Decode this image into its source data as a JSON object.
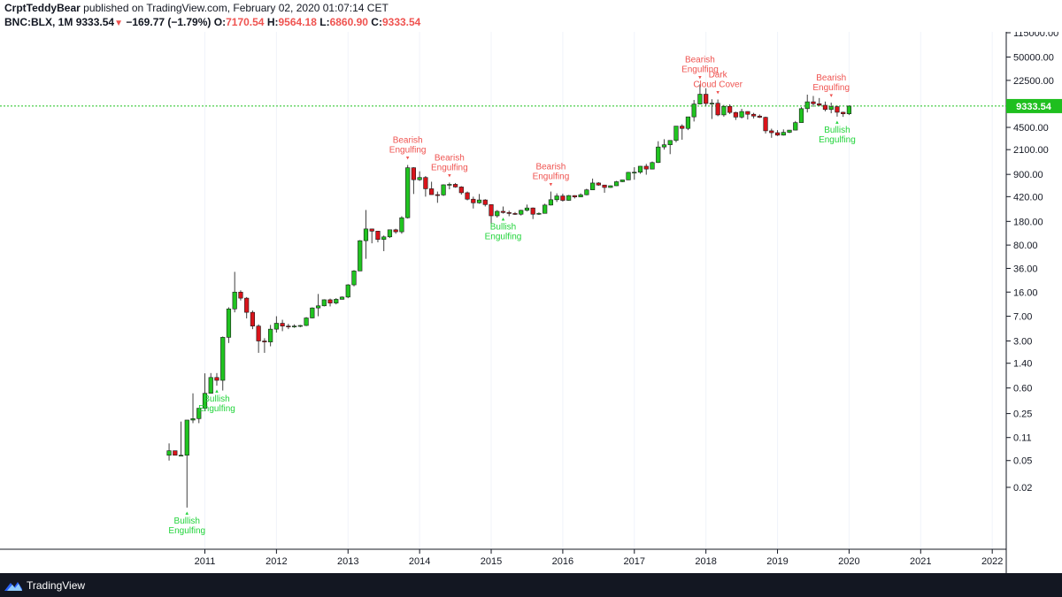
{
  "header": {
    "author": "CrptTeddyBear",
    "published_text": "published on TradingView.com, February 02, 2020 01:07:14 CET",
    "symbol": "BNC:BLX, 1M",
    "last_price": "9333.54",
    "change_arrow": "▼",
    "change": "−169.77 (−1.79%)",
    "open_label": "O:",
    "open_value": "7170.54",
    "high_label": "H:",
    "high_value": "9564.18",
    "low_label": "L:",
    "low_value": "6860.90",
    "close_label": "C:",
    "close_value": "9333.54"
  },
  "footer": {
    "brand": "TradingView"
  },
  "colors": {
    "up": "#20c420",
    "down": "#d9141b",
    "wick": "#404040",
    "bull_text": "#22d43b",
    "bear_text": "#ef5350",
    "price_line": "#1fc21f",
    "price_tag": "#1fbf1f",
    "axis": "#131722",
    "footer_bg": "#131722",
    "brand": "#2962ff"
  },
  "chart_data": {
    "type": "candlestick",
    "y_scale": "log",
    "x_tick_labels": [
      "2011",
      "2012",
      "2013",
      "2014",
      "2015",
      "2016",
      "2017",
      "2018",
      "2019",
      "2020",
      "2021",
      "2022"
    ],
    "y_tick_labels": [
      "115000.00",
      "50000.00",
      "22500.00",
      "9333.54",
      "4500.00",
      "2100.00",
      "900.00",
      "420.00",
      "180.00",
      "80.00",
      "36.00",
      "16.00",
      "7.00",
      "3.00",
      "1.40",
      "0.60",
      "0.25",
      "0.11",
      "0.05",
      "0.02"
    ],
    "last_price": 9333.54,
    "last_price_label": "9333.54",
    "candles": [
      {
        "t": "2010-07",
        "o": 0.06,
        "h": 0.09,
        "l": 0.05,
        "c": 0.07
      },
      {
        "t": "2010-08",
        "o": 0.07,
        "h": 0.07,
        "l": 0.06,
        "c": 0.06
      },
      {
        "t": "2010-09",
        "o": 0.06,
        "h": 0.19,
        "l": 0.06,
        "c": 0.06
      },
      {
        "t": "2010-10",
        "o": 0.06,
        "h": 0.2,
        "l": 0.01,
        "c": 0.2
      },
      {
        "t": "2010-11",
        "o": 0.2,
        "h": 0.5,
        "l": 0.18,
        "c": 0.21
      },
      {
        "t": "2010-12",
        "o": 0.21,
        "h": 0.3,
        "l": 0.18,
        "c": 0.3
      },
      {
        "t": "2011-01",
        "o": 0.3,
        "h": 0.99,
        "l": 0.27,
        "c": 0.5
      },
      {
        "t": "2011-02",
        "o": 0.5,
        "h": 1.0,
        "l": 0.55,
        "c": 0.86
      },
      {
        "t": "2011-03",
        "o": 0.86,
        "h": 1.0,
        "l": 0.65,
        "c": 0.78
      },
      {
        "t": "2011-04",
        "o": 0.78,
        "h": 3.5,
        "l": 0.55,
        "c": 3.4
      },
      {
        "t": "2011-05",
        "o": 3.4,
        "h": 9.5,
        "l": 2.8,
        "c": 9.0
      },
      {
        "t": "2011-06",
        "o": 9.0,
        "h": 32.0,
        "l": 8.0,
        "c": 16.0
      },
      {
        "t": "2011-07",
        "o": 16.0,
        "h": 17.0,
        "l": 12.0,
        "c": 13.0
      },
      {
        "t": "2011-08",
        "o": 13.0,
        "h": 13.5,
        "l": 6.5,
        "c": 8.0
      },
      {
        "t": "2011-09",
        "o": 8.0,
        "h": 8.5,
        "l": 4.5,
        "c": 5.0
      },
      {
        "t": "2011-10",
        "o": 5.0,
        "h": 5.3,
        "l": 2.0,
        "c": 3.0
      },
      {
        "t": "2011-11",
        "o": 3.0,
        "h": 3.3,
        "l": 2.0,
        "c": 2.9
      },
      {
        "t": "2011-12",
        "o": 2.9,
        "h": 5.2,
        "l": 2.5,
        "c": 4.5
      },
      {
        "t": "2012-01",
        "o": 4.5,
        "h": 7.0,
        "l": 4.0,
        "c": 5.5
      },
      {
        "t": "2012-02",
        "o": 5.5,
        "h": 6.2,
        "l": 4.2,
        "c": 5.0
      },
      {
        "t": "2012-03",
        "o": 5.0,
        "h": 5.4,
        "l": 4.5,
        "c": 4.9
      },
      {
        "t": "2012-04",
        "o": 4.9,
        "h": 5.3,
        "l": 4.7,
        "c": 5.0
      },
      {
        "t": "2012-05",
        "o": 5.0,
        "h": 5.2,
        "l": 4.8,
        "c": 5.1
      },
      {
        "t": "2012-06",
        "o": 5.1,
        "h": 6.8,
        "l": 5.0,
        "c": 6.6
      },
      {
        "t": "2012-07",
        "o": 6.6,
        "h": 9.5,
        "l": 6.5,
        "c": 9.3
      },
      {
        "t": "2012-08",
        "o": 9.3,
        "h": 15.0,
        "l": 7.0,
        "c": 10.0
      },
      {
        "t": "2012-09",
        "o": 10.0,
        "h": 12.5,
        "l": 9.8,
        "c": 12.3
      },
      {
        "t": "2012-10",
        "o": 12.3,
        "h": 12.8,
        "l": 9.8,
        "c": 11.0
      },
      {
        "t": "2012-11",
        "o": 11.0,
        "h": 13.0,
        "l": 10.5,
        "c": 12.5
      },
      {
        "t": "2012-12",
        "o": 12.5,
        "h": 13.8,
        "l": 12.4,
        "c": 13.5
      },
      {
        "t": "2013-01",
        "o": 13.5,
        "h": 21.0,
        "l": 13.0,
        "c": 20.5
      },
      {
        "t": "2013-02",
        "o": 20.5,
        "h": 34.0,
        "l": 19.5,
        "c": 33.0
      },
      {
        "t": "2013-03",
        "o": 33.0,
        "h": 95.0,
        "l": 33.0,
        "c": 93.0
      },
      {
        "t": "2013-04",
        "o": 93.0,
        "h": 266.0,
        "l": 50.0,
        "c": 139.0
      },
      {
        "t": "2013-05",
        "o": 139.0,
        "h": 140.0,
        "l": 85.0,
        "c": 129.0
      },
      {
        "t": "2013-06",
        "o": 129.0,
        "h": 130.0,
        "l": 88.0,
        "c": 97.0
      },
      {
        "t": "2013-07",
        "o": 97.0,
        "h": 111.0,
        "l": 65.0,
        "c": 106.0
      },
      {
        "t": "2013-08",
        "o": 106.0,
        "h": 135.0,
        "l": 102.0,
        "c": 135.0
      },
      {
        "t": "2013-09",
        "o": 135.0,
        "h": 140.0,
        "l": 118.0,
        "c": 126.0
      },
      {
        "t": "2013-10",
        "o": 126.0,
        "h": 215.0,
        "l": 118.0,
        "c": 204.0
      },
      {
        "t": "2013-11",
        "o": 204.0,
        "h": 1242.0,
        "l": 199.0,
        "c": 1130.0
      },
      {
        "t": "2013-12",
        "o": 1130.0,
        "h": 1150.0,
        "l": 460.0,
        "c": 750.0
      },
      {
        "t": "2014-01",
        "o": 750.0,
        "h": 1000.0,
        "l": 720.0,
        "c": 810.0
      },
      {
        "t": "2014-02",
        "o": 810.0,
        "h": 850.0,
        "l": 420.0,
        "c": 550.0
      },
      {
        "t": "2014-03",
        "o": 550.0,
        "h": 700.0,
        "l": 450.0,
        "c": 450.0
      },
      {
        "t": "2014-04",
        "o": 450.0,
        "h": 500.0,
        "l": 340.0,
        "c": 445.0
      },
      {
        "t": "2014-05",
        "o": 445.0,
        "h": 640.0,
        "l": 430.0,
        "c": 630.0
      },
      {
        "t": "2014-06",
        "o": 630.0,
        "h": 680.0,
        "l": 540.0,
        "c": 640.0
      },
      {
        "t": "2014-07",
        "o": 640.0,
        "h": 670.0,
        "l": 570.0,
        "c": 585.0
      },
      {
        "t": "2014-08",
        "o": 585.0,
        "h": 600.0,
        "l": 450.0,
        "c": 480.0
      },
      {
        "t": "2014-09",
        "o": 480.0,
        "h": 500.0,
        "l": 370.0,
        "c": 385.0
      },
      {
        "t": "2014-10",
        "o": 385.0,
        "h": 420.0,
        "l": 280.0,
        "c": 340.0
      },
      {
        "t": "2014-11",
        "o": 340.0,
        "h": 460.0,
        "l": 330.0,
        "c": 375.0
      },
      {
        "t": "2014-12",
        "o": 375.0,
        "h": 385.0,
        "l": 300.0,
        "c": 320.0
      },
      {
        "t": "2015-01",
        "o": 320.0,
        "h": 320.0,
        "l": 165.0,
        "c": 218.0
      },
      {
        "t": "2015-02",
        "o": 218.0,
        "h": 265.0,
        "l": 205.0,
        "c": 254.0
      },
      {
        "t": "2015-03",
        "o": 254.0,
        "h": 300.0,
        "l": 235.0,
        "c": 244.0
      },
      {
        "t": "2015-04",
        "o": 244.0,
        "h": 260.0,
        "l": 215.0,
        "c": 236.0
      },
      {
        "t": "2015-05",
        "o": 236.0,
        "h": 248.0,
        "l": 225.0,
        "c": 230.0
      },
      {
        "t": "2015-06",
        "o": 230.0,
        "h": 268.0,
        "l": 220.0,
        "c": 263.0
      },
      {
        "t": "2015-07",
        "o": 263.0,
        "h": 320.0,
        "l": 253.0,
        "c": 285.0
      },
      {
        "t": "2015-08",
        "o": 285.0,
        "h": 290.0,
        "l": 195.0,
        "c": 230.0
      },
      {
        "t": "2015-09",
        "o": 230.0,
        "h": 245.0,
        "l": 225.0,
        "c": 237.0
      },
      {
        "t": "2015-10",
        "o": 237.0,
        "h": 330.0,
        "l": 235.0,
        "c": 315.0
      },
      {
        "t": "2015-11",
        "o": 315.0,
        "h": 500.0,
        "l": 310.0,
        "c": 378.0
      },
      {
        "t": "2015-12",
        "o": 378.0,
        "h": 470.0,
        "l": 350.0,
        "c": 430.0
      },
      {
        "t": "2016-01",
        "o": 430.0,
        "h": 465.0,
        "l": 355.0,
        "c": 370.0
      },
      {
        "t": "2016-02",
        "o": 370.0,
        "h": 445.0,
        "l": 365.0,
        "c": 436.0
      },
      {
        "t": "2016-03",
        "o": 436.0,
        "h": 440.0,
        "l": 395.0,
        "c": 416.0
      },
      {
        "t": "2016-04",
        "o": 416.0,
        "h": 470.0,
        "l": 415.0,
        "c": 448.0
      },
      {
        "t": "2016-05",
        "o": 448.0,
        "h": 550.0,
        "l": 440.0,
        "c": 530.0
      },
      {
        "t": "2016-06",
        "o": 530.0,
        "h": 780.0,
        "l": 525.0,
        "c": 670.0
      },
      {
        "t": "2016-07",
        "o": 670.0,
        "h": 690.0,
        "l": 610.0,
        "c": 625.0
      },
      {
        "t": "2016-08",
        "o": 625.0,
        "h": 630.0,
        "l": 480.0,
        "c": 575.0
      },
      {
        "t": "2016-09",
        "o": 575.0,
        "h": 615.0,
        "l": 570.0,
        "c": 610.0
      },
      {
        "t": "2016-10",
        "o": 610.0,
        "h": 720.0,
        "l": 605.0,
        "c": 700.0
      },
      {
        "t": "2016-11",
        "o": 700.0,
        "h": 750.0,
        "l": 690.0,
        "c": 745.0
      },
      {
        "t": "2016-12",
        "o": 745.0,
        "h": 980.0,
        "l": 740.0,
        "c": 965.0
      },
      {
        "t": "2017-01",
        "o": 965.0,
        "h": 1150.0,
        "l": 750.0,
        "c": 970.0
      },
      {
        "t": "2017-02",
        "o": 970.0,
        "h": 1200.0,
        "l": 920.0,
        "c": 1190.0
      },
      {
        "t": "2017-03",
        "o": 1190.0,
        "h": 1290.0,
        "l": 890.0,
        "c": 1080.0
      },
      {
        "t": "2017-04",
        "o": 1080.0,
        "h": 1400.0,
        "l": 1070.0,
        "c": 1350.0
      },
      {
        "t": "2017-05",
        "o": 1350.0,
        "h": 2800.0,
        "l": 1330.0,
        "c": 2300.0
      },
      {
        "t": "2017-06",
        "o": 2300.0,
        "h": 3000.0,
        "l": 2100.0,
        "c": 2480.0
      },
      {
        "t": "2017-07",
        "o": 2480.0,
        "h": 2900.0,
        "l": 1800.0,
        "c": 2880.0
      },
      {
        "t": "2017-08",
        "o": 2880.0,
        "h": 4700.0,
        "l": 2700.0,
        "c": 4700.0
      },
      {
        "t": "2017-09",
        "o": 4700.0,
        "h": 5000.0,
        "l": 2950.0,
        "c": 4340.0
      },
      {
        "t": "2017-10",
        "o": 4340.0,
        "h": 6450.0,
        "l": 4100.0,
        "c": 6450.0
      },
      {
        "t": "2017-11",
        "o": 6450.0,
        "h": 11500.0,
        "l": 5500.0,
        "c": 10000.0
      },
      {
        "t": "2017-12",
        "o": 10000.0,
        "h": 19700.0,
        "l": 10000.0,
        "c": 14000.0
      },
      {
        "t": "2018-01",
        "o": 14000.0,
        "h": 17200.0,
        "l": 9200.0,
        "c": 10200.0
      },
      {
        "t": "2018-02",
        "o": 10200.0,
        "h": 11800.0,
        "l": 6000.0,
        "c": 10300.0
      },
      {
        "t": "2018-03",
        "o": 10300.0,
        "h": 11700.0,
        "l": 6600.0,
        "c": 6900.0
      },
      {
        "t": "2018-04",
        "o": 6900.0,
        "h": 9700.0,
        "l": 6500.0,
        "c": 9250.0
      },
      {
        "t": "2018-05",
        "o": 9250.0,
        "h": 9900.0,
        "l": 7100.0,
        "c": 7500.0
      },
      {
        "t": "2018-06",
        "o": 7500.0,
        "h": 7700.0,
        "l": 5800.0,
        "c": 6400.0
      },
      {
        "t": "2018-07",
        "o": 6400.0,
        "h": 8500.0,
        "l": 6100.0,
        "c": 7750.0
      },
      {
        "t": "2018-08",
        "o": 7750.0,
        "h": 7800.0,
        "l": 5900.0,
        "c": 7050.0
      },
      {
        "t": "2018-09",
        "o": 7050.0,
        "h": 7400.0,
        "l": 6100.0,
        "c": 6630.0
      },
      {
        "t": "2018-10",
        "o": 6630.0,
        "h": 7000.0,
        "l": 6200.0,
        "c": 6350.0
      },
      {
        "t": "2018-11",
        "o": 6350.0,
        "h": 6500.0,
        "l": 3650.0,
        "c": 4000.0
      },
      {
        "t": "2018-12",
        "o": 4000.0,
        "h": 4300.0,
        "l": 3150.0,
        "c": 3750.0
      },
      {
        "t": "2019-01",
        "o": 3750.0,
        "h": 4100.0,
        "l": 3350.0,
        "c": 3450.0
      },
      {
        "t": "2019-02",
        "o": 3450.0,
        "h": 4200.0,
        "l": 3400.0,
        "c": 3800.0
      },
      {
        "t": "2019-03",
        "o": 3800.0,
        "h": 4100.0,
        "l": 3700.0,
        "c": 4100.0
      },
      {
        "t": "2019-04",
        "o": 4100.0,
        "h": 5600.0,
        "l": 4050.0,
        "c": 5300.0
      },
      {
        "t": "2019-05",
        "o": 5300.0,
        "h": 9000.0,
        "l": 5300.0,
        "c": 8550.0
      },
      {
        "t": "2019-06",
        "o": 8550.0,
        "h": 13800.0,
        "l": 7500.0,
        "c": 10800.0
      },
      {
        "t": "2019-07",
        "o": 10800.0,
        "h": 13200.0,
        "l": 9100.0,
        "c": 10100.0
      },
      {
        "t": "2019-08",
        "o": 10100.0,
        "h": 12300.0,
        "l": 9400.0,
        "c": 9600.0
      },
      {
        "t": "2019-09",
        "o": 9600.0,
        "h": 10900.0,
        "l": 7800.0,
        "c": 8300.0
      },
      {
        "t": "2019-10",
        "o": 8300.0,
        "h": 10500.0,
        "l": 7300.0,
        "c": 9150.0
      },
      {
        "t": "2019-11",
        "o": 9150.0,
        "h": 9500.0,
        "l": 6500.0,
        "c": 7550.0
      },
      {
        "t": "2019-12",
        "o": 7550.0,
        "h": 7700.0,
        "l": 6450.0,
        "c": 7170.0
      },
      {
        "t": "2020-01",
        "o": 7170.54,
        "h": 9564.18,
        "l": 6860.9,
        "c": 9333.54
      }
    ],
    "annotations": [
      {
        "t": "2010-10",
        "kind": "bull",
        "lines": [
          "Bullish",
          "Engulfing"
        ],
        "at": "below"
      },
      {
        "t": "2011-03",
        "kind": "bull",
        "lines": [
          "Bullish",
          "Engulfing"
        ],
        "at": "below"
      },
      {
        "t": "2013-11",
        "kind": "bear",
        "lines": [
          "Bearish",
          "Engulfing"
        ],
        "at": "above"
      },
      {
        "t": "2014-06",
        "kind": "bear",
        "lines": [
          "Bearish",
          "Engulfing"
        ],
        "at": "above"
      },
      {
        "t": "2015-03",
        "kind": "bull",
        "lines": [
          "Bullish",
          "Engulfing"
        ],
        "at": "below"
      },
      {
        "t": "2015-11",
        "kind": "bear",
        "lines": [
          "Bearish",
          "Engulfing"
        ],
        "at": "above"
      },
      {
        "t": "2017-12",
        "kind": "bear",
        "lines": [
          "Bearish",
          "Engulfing"
        ],
        "at": "above"
      },
      {
        "t": "2018-03",
        "kind": "bear",
        "lines": [
          "Dark",
          "Cloud Cover"
        ],
        "at": "above"
      },
      {
        "t": "2019-10",
        "kind": "bear",
        "lines": [
          "Bearish",
          "Engulfing"
        ],
        "at": "above"
      },
      {
        "t": "2019-11",
        "kind": "bull",
        "lines": [
          "Bullish",
          "Engulfing"
        ],
        "at": "below"
      }
    ]
  }
}
